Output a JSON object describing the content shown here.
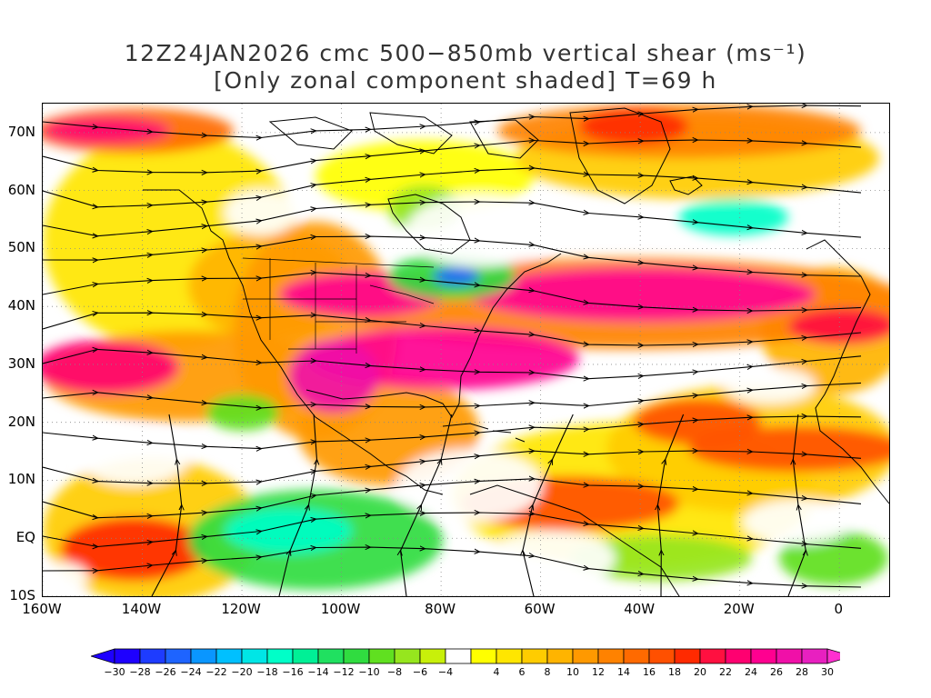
{
  "title": {
    "line1": "12Z24JAN2026 cmc 500−850mb vertical shear (ms⁻¹)",
    "line2": "[Only zonal component shaded] T=69 h"
  },
  "map": {
    "lat_labels": [
      "70N",
      "60N",
      "50N",
      "40N",
      "30N",
      "20N",
      "10N",
      "EQ",
      "10S"
    ],
    "lon_labels": [
      "160W",
      "140W",
      "120W",
      "100W",
      "80W",
      "60W",
      "40W",
      "20W",
      "0"
    ],
    "shading_legend": "zonal component of 500-850mb vertical shear"
  },
  "colorbar": {
    "tick_labels": [
      "−30",
      "−28",
      "−26",
      "−24",
      "−22",
      "−20",
      "−18",
      "−16",
      "−14",
      "−12",
      "−10",
      "−8",
      "−6",
      "−4",
      "4",
      "6",
      "8",
      "10",
      "12",
      "14",
      "16",
      "18",
      "20",
      "22",
      "24",
      "26",
      "28",
      "30"
    ],
    "colors": [
      "#1e00ff",
      "#1e3cff",
      "#1e64ff",
      "#0a96ff",
      "#00c0ff",
      "#00e6e6",
      "#00ffc8",
      "#00f096",
      "#20e060",
      "#30dc40",
      "#60e020",
      "#96e61e",
      "#c8f00a",
      "#ffffff",
      "#ffff00",
      "#ffe600",
      "#ffcc00",
      "#ffb400",
      "#ff9900",
      "#ff8200",
      "#ff6a00",
      "#ff5000",
      "#ff2a00",
      "#ff1040",
      "#ff0070",
      "#ff0090",
      "#f010a8",
      "#e820c0"
    ],
    "min_arrow_color": "#1e00ff",
    "max_arrow_color": "#ff30d0"
  }
}
